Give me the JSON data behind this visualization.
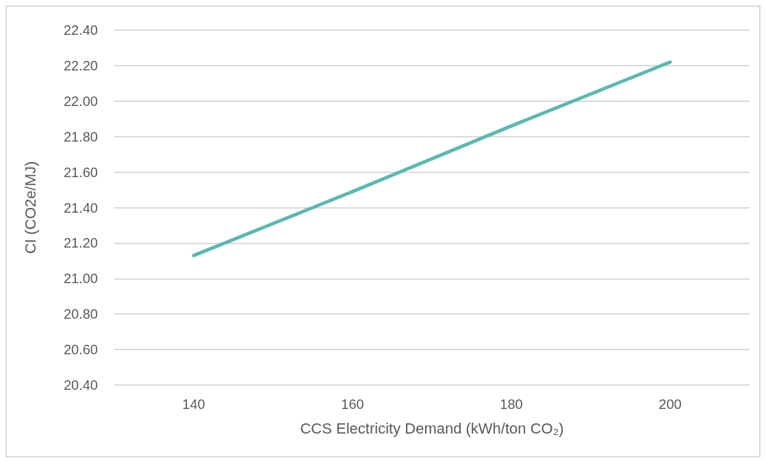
{
  "chart_data": {
    "type": "line",
    "xlabel": "CCS Electricity Demand (kWh/ton CO₂)",
    "ylabel": "CI (CO2e/MJ)",
    "categories": [
      "140",
      "160",
      "180",
      "200"
    ],
    "series": [
      {
        "color": "#5bb8b0",
        "values": [
          21.13,
          21.49,
          21.86,
          22.22
        ]
      }
    ],
    "ylim": [
      20.4,
      22.4
    ],
    "yticks": [
      {
        "value": 20.4,
        "label": "20.40"
      },
      {
        "value": 20.6,
        "label": "20.60"
      },
      {
        "value": 20.8,
        "label": "20.80"
      },
      {
        "value": 21.0,
        "label": "21.00"
      },
      {
        "value": 21.2,
        "label": "21.20"
      },
      {
        "value": 21.4,
        "label": "21.40"
      },
      {
        "value": 21.6,
        "label": "21.60"
      },
      {
        "value": 21.8,
        "label": "21.80"
      },
      {
        "value": 22.0,
        "label": "22.00"
      },
      {
        "value": 22.2,
        "label": "22.20"
      },
      {
        "value": 22.4,
        "label": "22.40"
      }
    ],
    "grid": "y",
    "marker": "none",
    "line_style": "solid"
  }
}
